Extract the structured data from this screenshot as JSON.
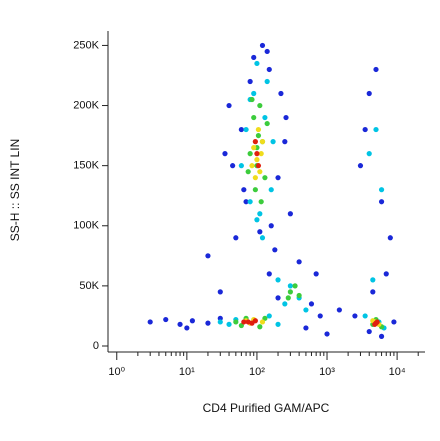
{
  "chart_data": {
    "type": "scatter",
    "x_label": "CD4 Purified GAM/APC",
    "y_label": "SS-H :: SS INT LIN",
    "xscale": "log",
    "xlim": [
      0.75,
      25000
    ],
    "ylim": [
      -5000,
      262000
    ],
    "xticks": [
      {
        "value": 1,
        "label": "10⁰"
      },
      {
        "value": 10,
        "label": "10¹"
      },
      {
        "value": 100,
        "label": "10²"
      },
      {
        "value": 1000,
        "label": "10³"
      },
      {
        "value": 10000,
        "label": "10⁴"
      }
    ],
    "xminorticks": [
      2,
      3,
      4,
      5,
      6,
      7,
      8,
      9,
      20,
      30,
      40,
      50,
      60,
      70,
      80,
      90,
      200,
      300,
      400,
      500,
      600,
      700,
      800,
      900,
      2000,
      3000,
      4000,
      5000,
      6000,
      7000,
      8000,
      9000,
      20000
    ],
    "yticks": [
      0,
      {
        "value": 50000,
        "label": "50K"
      },
      {
        "value": 100000,
        "label": "100K"
      },
      {
        "value": 150000,
        "label": "150K"
      },
      {
        "value": 200000,
        "label": "200K"
      },
      {
        "value": 250000,
        "label": "250K"
      }
    ],
    "series": [
      {
        "color": "#1a28d8",
        "x": [
          40,
          60,
          70,
          150,
          200,
          250,
          50,
          300,
          45,
          80,
          120,
          180,
          220,
          35,
          260,
          90,
          110,
          160,
          140,
          65,
          3,
          5,
          8,
          12,
          20,
          30,
          150,
          400,
          600,
          800,
          200,
          500,
          3000,
          4000,
          6000,
          8000,
          3500,
          5000,
          7000,
          4500,
          2500,
          9000,
          6000,
          4000,
          1500,
          30,
          1000,
          20,
          700,
          10
        ],
        "y": [
          200000,
          180000,
          120000,
          230000,
          140000,
          170000,
          90000,
          110000,
          150000,
          220000,
          250000,
          80000,
          210000,
          160000,
          190000,
          240000,
          95000,
          100000,
          245000,
          130000,
          20000,
          22000,
          18000,
          21000,
          19000,
          23000,
          60000,
          70000,
          35000,
          25000,
          40000,
          15000,
          150000,
          210000,
          120000,
          90000,
          180000,
          230000,
          60000,
          45000,
          25000,
          20000,
          8000,
          12000,
          30000,
          45000,
          10000,
          75000,
          60000,
          15000
        ]
      },
      {
        "color": "#00c4e4",
        "x": [
          70,
          90,
          130,
          160,
          60,
          110,
          140,
          80,
          170,
          100,
          4000,
          5000,
          6000,
          4500,
          5500,
          300,
          400,
          250,
          500,
          200,
          30,
          40,
          50,
          150,
          200,
          3500,
          6500,
          80,
          120,
          100
        ],
        "y": [
          180000,
          210000,
          190000,
          130000,
          150000,
          110000,
          220000,
          120000,
          170000,
          235000,
          160000,
          180000,
          130000,
          55000,
          20000,
          50000,
          40000,
          35000,
          30000,
          55000,
          20000,
          18000,
          22000,
          25000,
          18000,
          25000,
          15000,
          205000,
          90000,
          105000
        ]
      },
      {
        "color": "#3ccc3c",
        "x": [
          80,
          100,
          120,
          90,
          110,
          130,
          95,
          105,
          75,
          140,
          300,
          350,
          400,
          280,
          5000,
          4500,
          6000,
          50,
          60,
          130,
          110,
          70,
          100,
          115,
          85
        ],
        "y": [
          160000,
          150000,
          170000,
          190000,
          200000,
          140000,
          130000,
          175000,
          145000,
          185000,
          45000,
          50000,
          42000,
          40000,
          22000,
          18000,
          16000,
          20000,
          17000,
          23000,
          16000,
          23000,
          165000,
          120000,
          205000
        ]
      },
      {
        "color": "#f0dc1c",
        "x": [
          100,
          90,
          110,
          120,
          95,
          105,
          70,
          80,
          90,
          120,
          5000,
          5500,
          4500,
          85,
          115
        ],
        "y": [
          155000,
          165000,
          145000,
          170000,
          140000,
          180000,
          21000,
          19000,
          22000,
          20000,
          20000,
          18000,
          21000,
          150000,
          160000
        ]
      },
      {
        "color": "#e0200e",
        "x": [
          100,
          105,
          95,
          75,
          85,
          95,
          65,
          5000,
          5200,
          4800
        ],
        "y": [
          160000,
          150000,
          170000,
          20000,
          19000,
          21000,
          20000,
          19000,
          20000,
          18000
        ]
      }
    ]
  }
}
